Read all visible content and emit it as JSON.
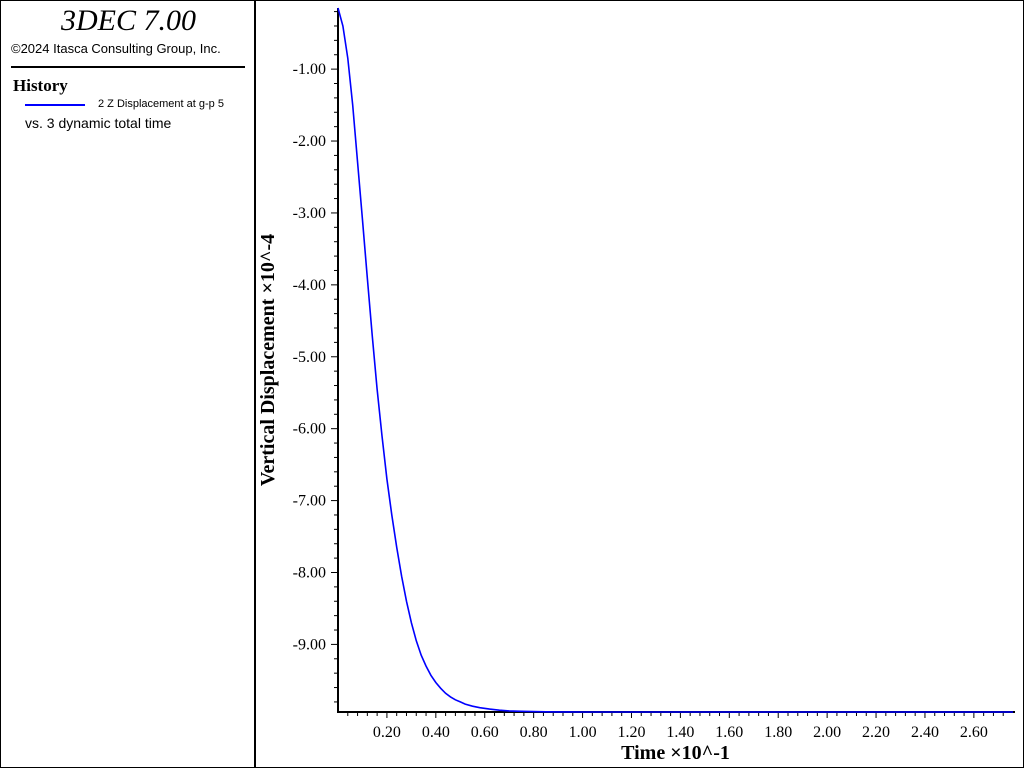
{
  "header": {
    "app_title": "3DEC 7.00",
    "copyright": "©2024 Itasca Consulting Group, Inc."
  },
  "legend": {
    "heading": "History",
    "series_label": "2 Z Displacement at g-p 5",
    "vs_label": "vs. 3 dynamic total time",
    "line_color": "#0000ff"
  },
  "chart_data": {
    "type": "line",
    "xlabel": "Time ×10^-1",
    "ylabel": "Vertical Displacement ×10^-4",
    "xlim": [
      0.0,
      2.76
    ],
    "ylim": [
      -9.94,
      -0.15
    ],
    "x_ticks": [
      0.2,
      0.4,
      0.6,
      0.8,
      1.0,
      1.2,
      1.4,
      1.6,
      1.8,
      2.0,
      2.2,
      2.4,
      2.6
    ],
    "x_tick_labels": [
      "0.20",
      "0.40",
      "0.60",
      "0.80",
      "1.00",
      "1.20",
      "1.40",
      "1.60",
      "1.80",
      "2.00",
      "2.20",
      "2.40",
      "2.60"
    ],
    "y_ticks": [
      -1,
      -2,
      -3,
      -4,
      -5,
      -6,
      -7,
      -8,
      -9
    ],
    "y_tick_labels": [
      "-1.00",
      "-2.00",
      "-3.00",
      "-4.00",
      "-5.00",
      "-6.00",
      "-7.00",
      "-8.00",
      "-9.00"
    ],
    "grid": false,
    "series": [
      {
        "color": "#0000ff",
        "x": [
          0.0,
          0.02,
          0.04,
          0.06,
          0.08,
          0.1,
          0.12,
          0.14,
          0.16,
          0.18,
          0.2,
          0.22,
          0.24,
          0.26,
          0.28,
          0.3,
          0.32,
          0.34,
          0.36,
          0.38,
          0.4,
          0.42,
          0.44,
          0.46,
          0.48,
          0.5,
          0.52,
          0.55,
          0.58,
          0.62,
          0.66,
          0.7,
          0.75,
          0.8,
          0.85,
          0.9,
          0.95,
          1.0,
          1.2,
          1.5,
          1.8,
          2.1,
          2.4,
          2.76
        ],
        "y": [
          -0.15,
          -0.4,
          -0.85,
          -1.5,
          -2.3,
          -3.1,
          -3.9,
          -4.7,
          -5.45,
          -6.1,
          -6.7,
          -7.2,
          -7.65,
          -8.05,
          -8.4,
          -8.7,
          -8.95,
          -9.15,
          -9.3,
          -9.43,
          -9.53,
          -9.61,
          -9.68,
          -9.73,
          -9.77,
          -9.8,
          -9.83,
          -9.86,
          -9.88,
          -9.9,
          -9.915,
          -9.925,
          -9.93,
          -9.935,
          -9.937,
          -9.938,
          -9.939,
          -9.94,
          -9.94,
          -9.94,
          -9.94,
          -9.94,
          -9.94,
          -9.94
        ]
      }
    ]
  }
}
